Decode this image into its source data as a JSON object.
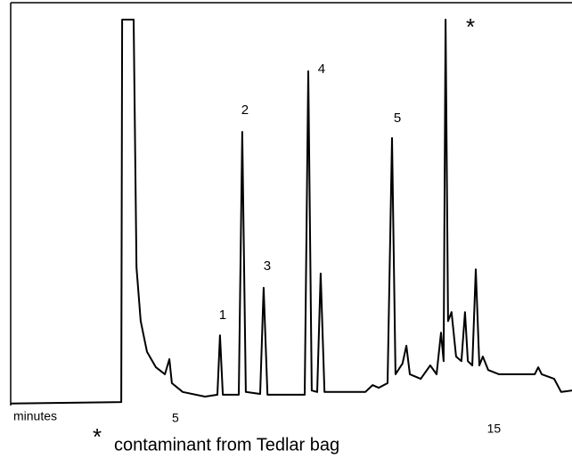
{
  "chart_data": {
    "type": "line",
    "x_label": "minutes",
    "xlim": [
      -0.17,
      17.45
    ],
    "ylim": [
      0,
      100
    ],
    "xticks": [
      5,
      15
    ],
    "series": [
      {
        "color": "#000000",
        "x": [
          -0.17,
          3.3,
          3.33,
          3.69,
          3.78,
          3.91,
          4.11,
          4.39,
          4.67,
          4.81,
          4.89,
          5.23,
          5.93,
          6.32,
          6.4,
          6.49,
          6.99,
          7.1,
          7.21,
          7.66,
          7.77,
          7.89,
          9.06,
          9.17,
          9.28,
          9.45,
          9.56,
          9.68,
          10.96,
          11.19,
          11.38,
          11.66,
          11.8,
          11.91,
          12.13,
          12.25,
          12.36,
          12.7,
          13.0,
          13.2,
          13.34,
          13.42,
          13.48,
          13.56,
          13.67,
          13.81,
          13.98,
          14.09,
          14.18,
          14.32,
          14.43,
          14.54,
          14.65,
          14.82,
          15.16,
          15.72,
          16.28,
          16.39,
          16.5,
          16.89,
          17.11,
          17.45
        ],
        "values": [
          0.5,
          0.9,
          100,
          100,
          35.8,
          21.9,
          13.9,
          9.9,
          8.1,
          12.0,
          5.8,
          3.5,
          2.3,
          2.8,
          18.2,
          2.8,
          2.8,
          70.9,
          3.5,
          3.0,
          30.5,
          2.8,
          2.8,
          86.6,
          3.9,
          3.5,
          34.2,
          3.5,
          3.5,
          5.3,
          4.6,
          5.8,
          69.3,
          8.1,
          10.9,
          15.5,
          8.1,
          6.9,
          10.4,
          8.1,
          18.9,
          11.5,
          100,
          21.9,
          24.2,
          12.7,
          11.5,
          24.2,
          11.5,
          10.4,
          35.3,
          10.4,
          12.7,
          9.2,
          8.1,
          8.1,
          8.1,
          9.9,
          8.1,
          6.9,
          3.5,
          3.9
        ]
      }
    ],
    "annotations": [
      {
        "text": "1",
        "x": 6.4,
        "y": 18.2
      },
      {
        "text": "2",
        "x": 7.1,
        "y": 70.9
      },
      {
        "text": "3",
        "x": 7.77,
        "y": 30.5
      },
      {
        "text": "4",
        "x": 9.17,
        "y": 86.6
      },
      {
        "text": "5",
        "x": 11.8,
        "y": 69.3
      },
      {
        "text": "*",
        "x": 13.48,
        "y": 100
      }
    ],
    "footnote_marker": "*",
    "footnote": "contaminant from Tedlar bag"
  }
}
